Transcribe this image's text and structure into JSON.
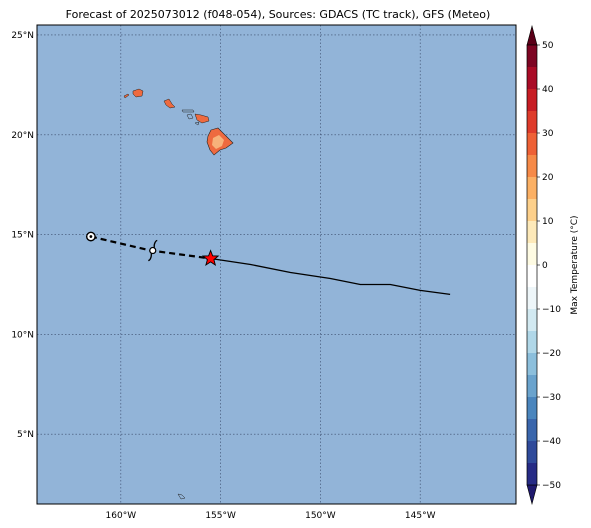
{
  "title": "Forecast of 2025073012 (f048-054), Sources: GDACS (TC track), GFS (Meteo)",
  "map": {
    "lon_range": [
      -164.2,
      -140.2
    ],
    "lat_range": [
      1.5,
      25.5
    ],
    "lat_ticks": [
      {
        "value": 25,
        "label": "25°N"
      },
      {
        "value": 20,
        "label": "20°N"
      },
      {
        "value": 15,
        "label": "15°N"
      },
      {
        "value": 10,
        "label": "10°N"
      },
      {
        "value": 5,
        "label": "5°N"
      }
    ],
    "lon_ticks": [
      {
        "value": -160,
        "label": "160°W"
      },
      {
        "value": -155,
        "label": "155°W"
      },
      {
        "value": -150,
        "label": "150°W"
      },
      {
        "value": -145,
        "label": "145°W"
      }
    ],
    "ocean_color": "#92b4d8",
    "grid": true
  },
  "track": {
    "past_points": [
      [
        -161.5,
        14.9
      ],
      [
        -159.8,
        14.5
      ],
      [
        -158.5,
        14.2
      ],
      [
        -157.0,
        14.0
      ],
      [
        -155.5,
        13.8
      ]
    ],
    "forecast_points": [
      [
        -155.5,
        13.8
      ],
      [
        -153.5,
        13.5
      ],
      [
        -151.5,
        13.1
      ],
      [
        -149.5,
        12.8
      ],
      [
        -148.0,
        12.5
      ],
      [
        -146.5,
        12.5
      ],
      [
        -145.0,
        12.2
      ],
      [
        -143.5,
        12.0
      ]
    ],
    "start_marker": [
      -161.5,
      14.9
    ],
    "symbol_position": [
      -158.4,
      14.2
    ],
    "current_position": [
      -155.5,
      13.8
    ],
    "current_color": "#ff0000"
  },
  "colorbar": {
    "label": "Max Temperature (°C)",
    "levels": [
      -55,
      -50,
      -45,
      -40,
      -35,
      -30,
      -25,
      -20,
      -15,
      -10,
      -5,
      0,
      5,
      10,
      15,
      20,
      25,
      30,
      35,
      40,
      45,
      50,
      55
    ],
    "colors": [
      "#1f1a6e",
      "#262b85",
      "#2f4a9a",
      "#3a66ac",
      "#4a85bd",
      "#6aa3cd",
      "#8cbfdc",
      "#b0d7e8",
      "#d2e9f1",
      "#eef6f9",
      "#ffffff",
      "#fefbe3",
      "#fde9b9",
      "#fdd08b",
      "#fbb064",
      "#f68a48",
      "#ee6136",
      "#de3b2b",
      "#c71d24",
      "#a90b26",
      "#7d0523",
      "#5a0018"
    ],
    "tick_labels": [
      {
        "value": 50,
        "label": "50"
      },
      {
        "value": 40,
        "label": "40"
      },
      {
        "value": 30,
        "label": "30"
      },
      {
        "value": 20,
        "label": "20"
      },
      {
        "value": 10,
        "label": "10"
      },
      {
        "value": 0,
        "label": "0"
      },
      {
        "value": -10,
        "label": "−10"
      },
      {
        "value": -20,
        "label": "−20"
      },
      {
        "value": -30,
        "label": "−30"
      },
      {
        "value": -40,
        "label": "−40"
      },
      {
        "value": -50,
        "label": "−50"
      }
    ]
  }
}
